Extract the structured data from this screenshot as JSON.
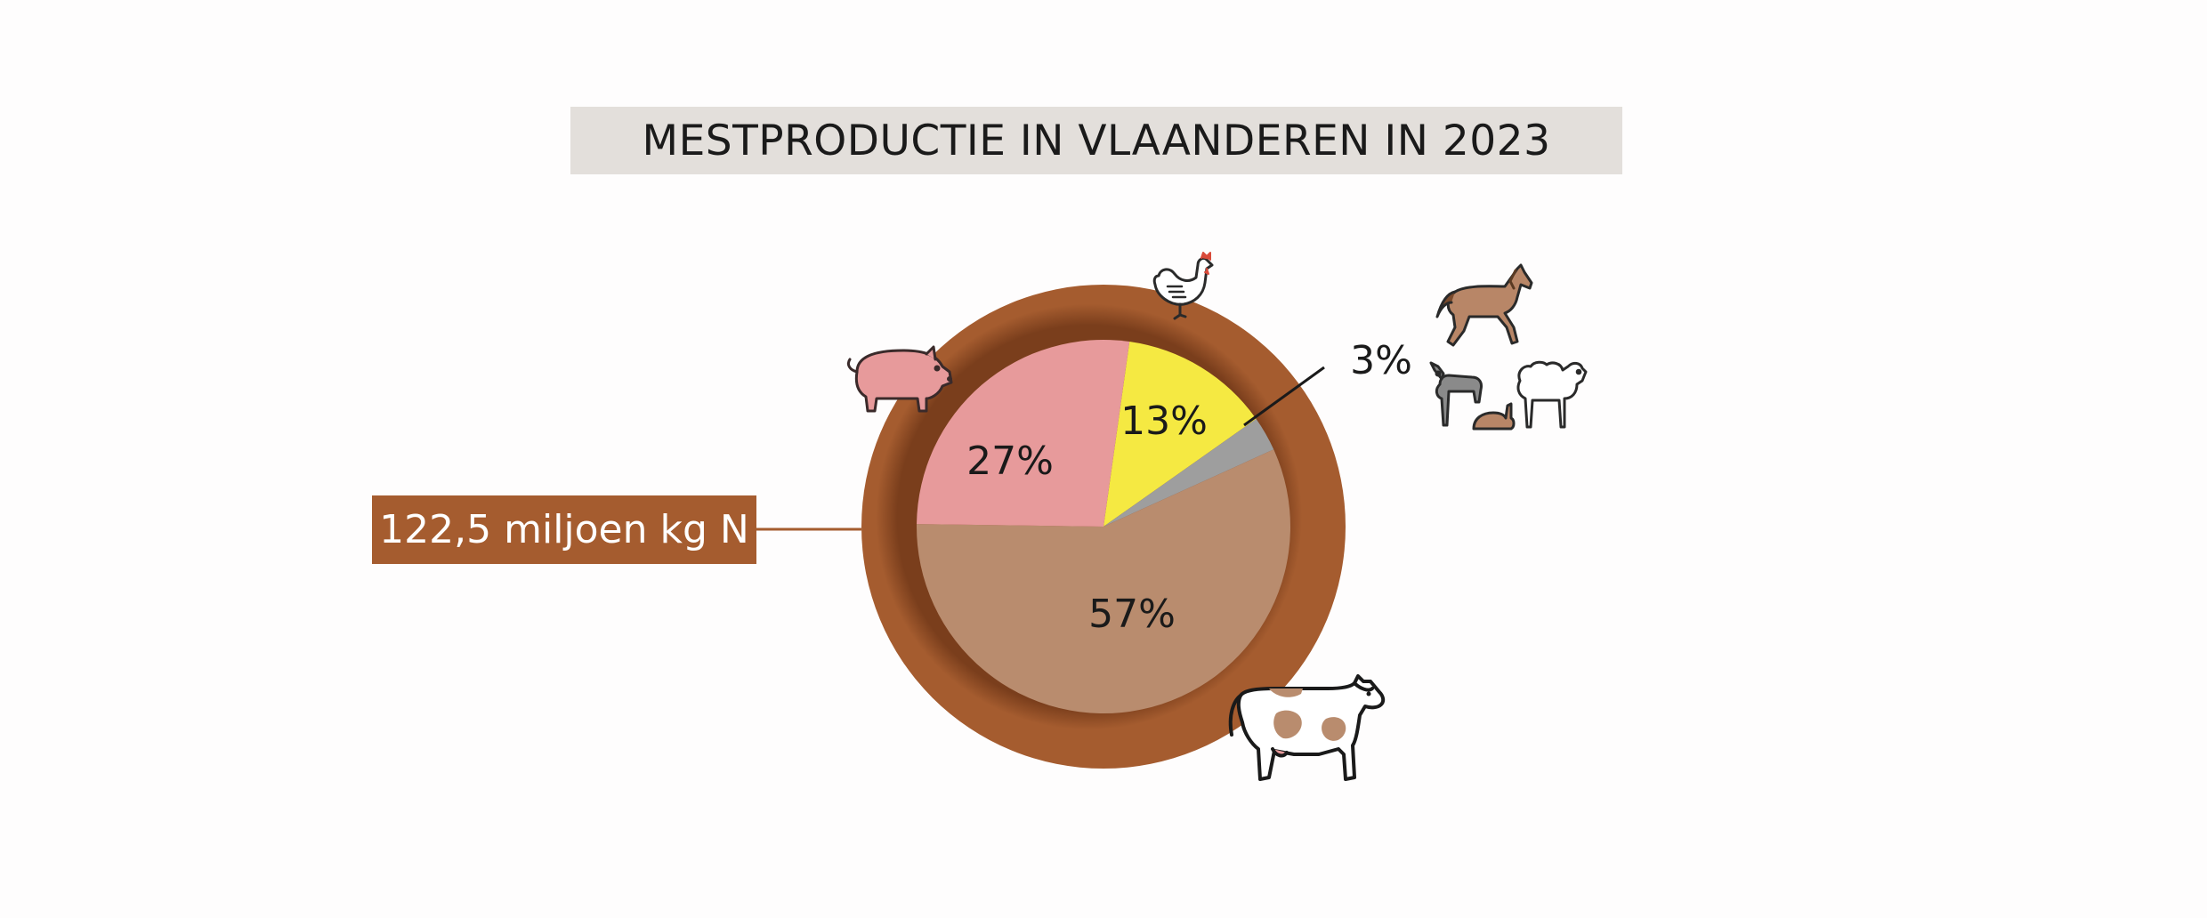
{
  "title": "MESTPRODUCTIE IN VLAANDEREN IN 2023",
  "total_label": "122,5 miljoen kg N",
  "colors": {
    "ring": "#a55c2f",
    "title_bg": "#e3dfdb"
  },
  "chart_data": {
    "type": "pie",
    "title": "MESTPRODUCTIE IN VLAANDEREN IN 2023",
    "total": "122,5 miljoen kg N",
    "slices": [
      {
        "label": "13%",
        "value": 13,
        "color": "#f5e942",
        "icon": "chicken-icon"
      },
      {
        "label": "3%",
        "value": 3,
        "color": "#9e9e9e",
        "icon": "horse-goat-sheep-rabbit-icon"
      },
      {
        "label": "57%",
        "value": 57,
        "color": "#b98c6e",
        "icon": "cow-icon"
      },
      {
        "label": "27%",
        "value": 27,
        "color": "#e79a9b",
        "icon": "pig-icon"
      }
    ]
  }
}
